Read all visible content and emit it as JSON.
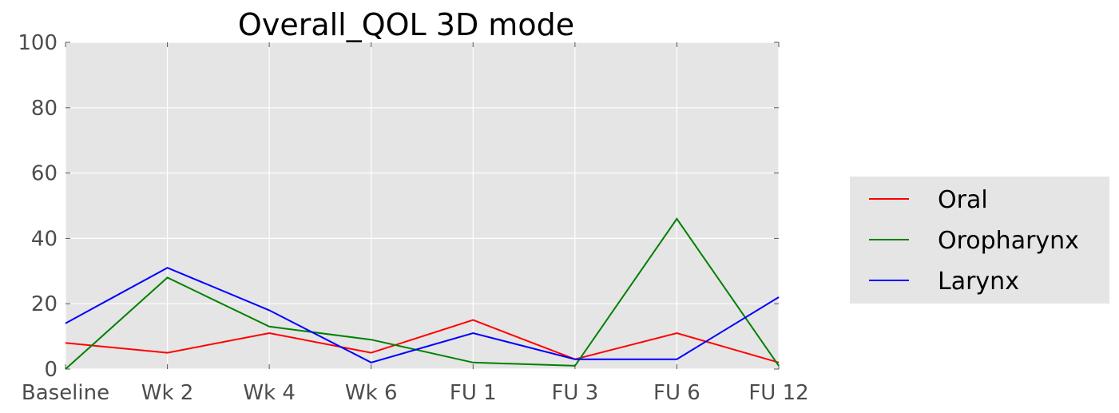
{
  "chart_data": {
    "type": "line",
    "title": "Overall_QOL 3D  mode",
    "xlabel": "",
    "ylabel": "",
    "categories": [
      "Baseline",
      "Wk 2",
      "Wk 4",
      "Wk 6",
      "FU 1",
      "FU 3",
      "FU 6",
      "FU 12"
    ],
    "ylim": [
      0,
      100
    ],
    "yticks": [
      0,
      20,
      40,
      60,
      80,
      100
    ],
    "grid": true,
    "legend_position": "right",
    "series": [
      {
        "name": "Oral",
        "color": "#ff0000",
        "values": [
          8,
          5,
          11,
          5,
          15,
          3,
          11,
          2
        ]
      },
      {
        "name": "Oropharynx",
        "color": "#008000",
        "values": [
          0,
          28,
          13,
          9,
          2,
          1,
          46,
          1
        ]
      },
      {
        "name": "Larynx",
        "color": "#0000ff",
        "values": [
          14,
          31,
          18,
          2,
          11,
          3,
          3,
          22
        ]
      }
    ],
    "background": "#e5e5e5"
  }
}
